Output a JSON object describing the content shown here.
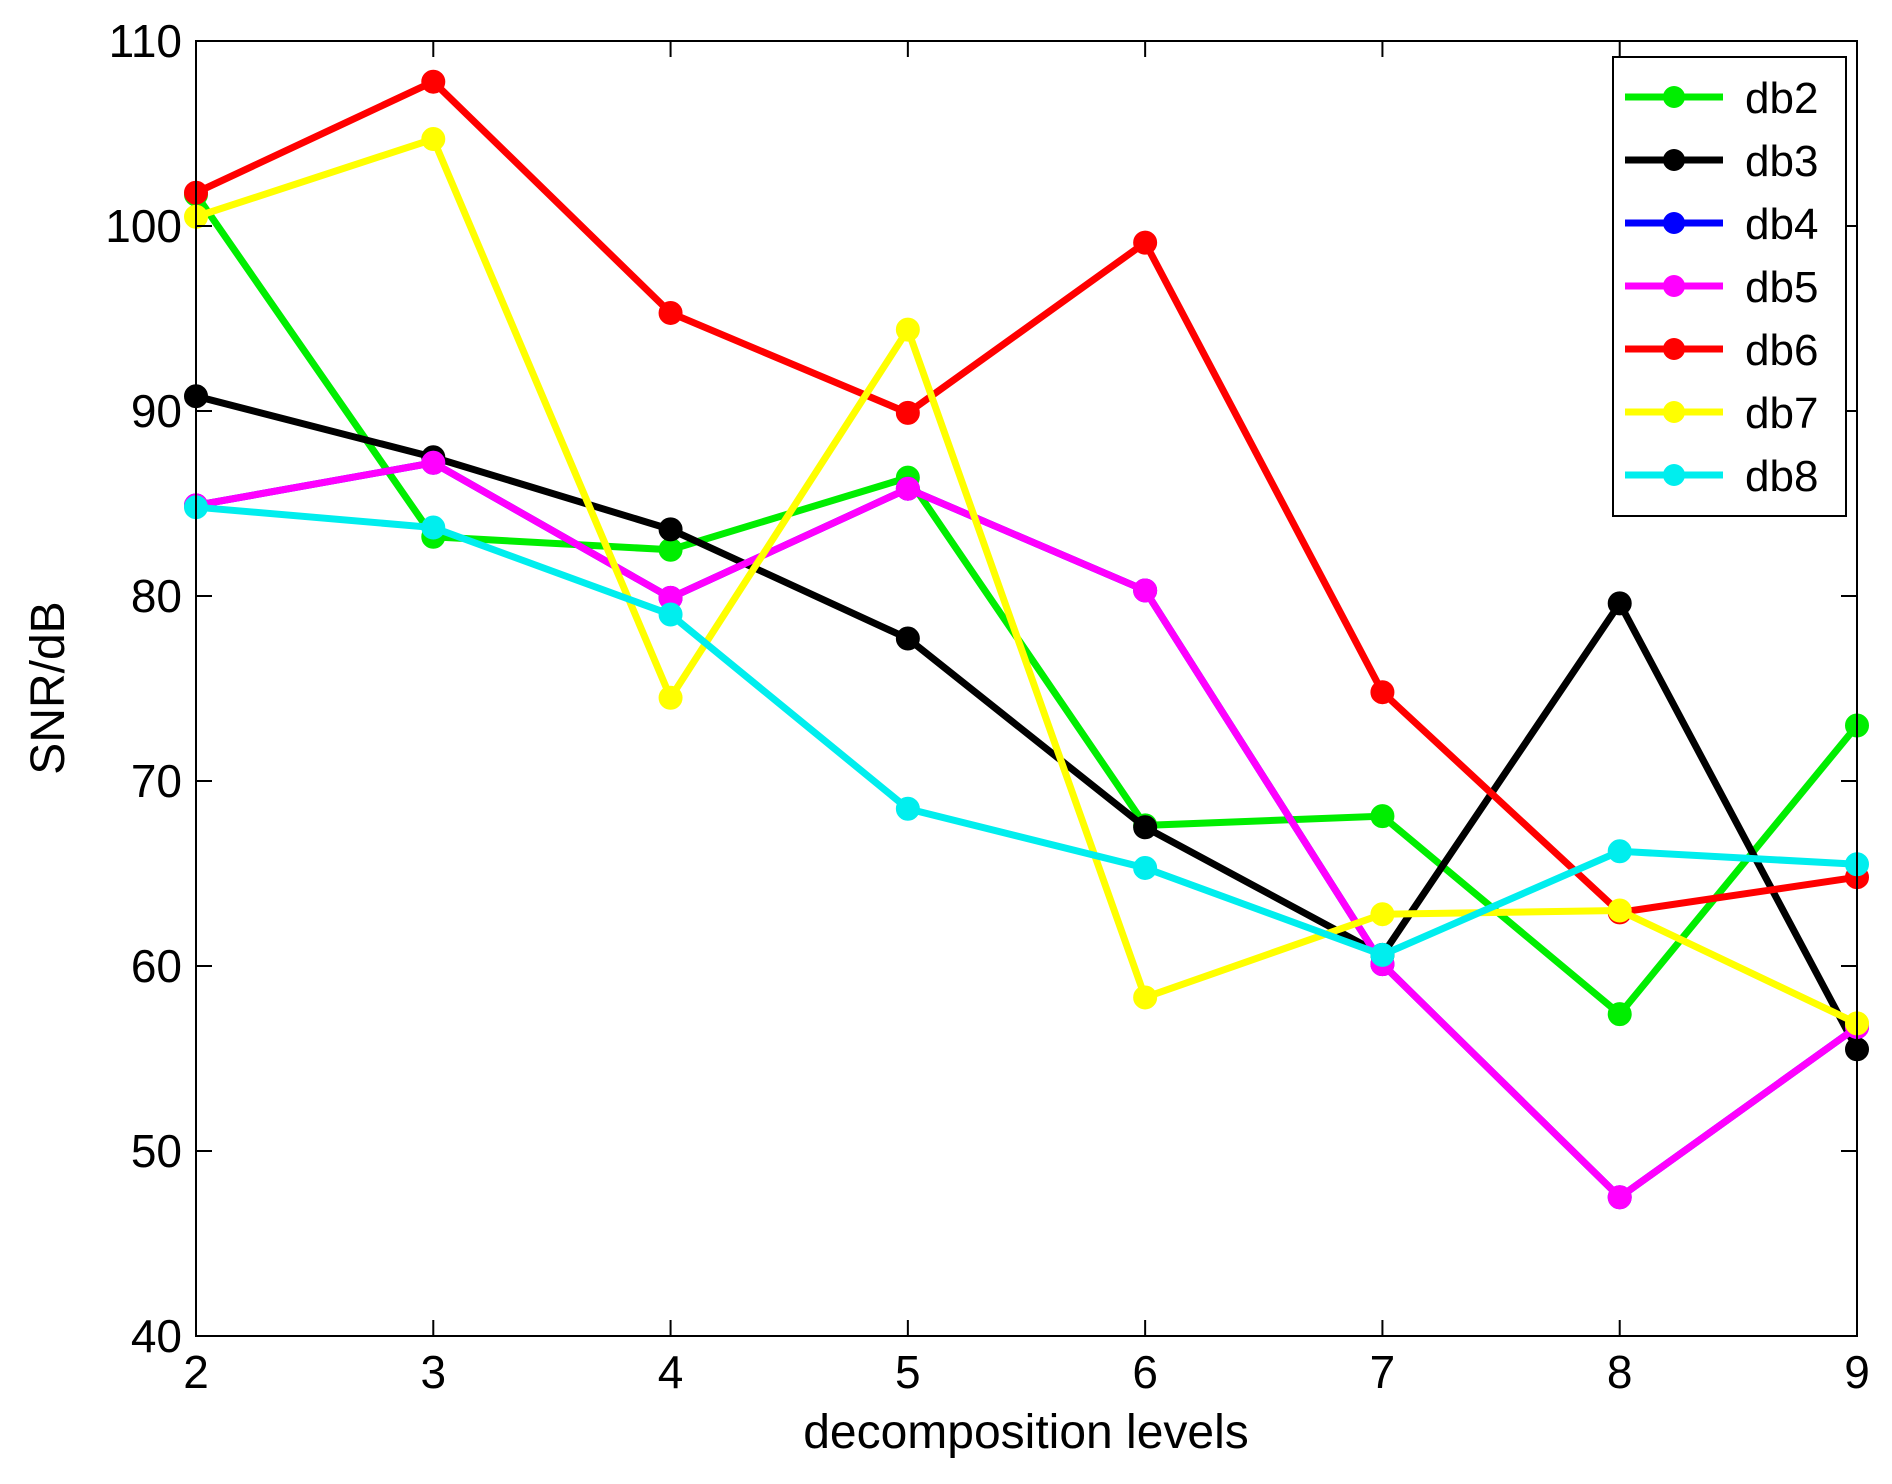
{
  "chart_data": {
    "type": "line",
    "title": "",
    "xlabel": "decomposition levels",
    "ylabel": "SNR/dB",
    "xlim": [
      2,
      9
    ],
    "ylim": [
      40,
      110
    ],
    "grid": false,
    "legend_position": "top-right",
    "x": [
      2,
      3,
      4,
      5,
      6,
      7,
      8,
      9
    ],
    "x_ticks": [
      "2",
      "3",
      "4",
      "5",
      "6",
      "7",
      "8",
      "9"
    ],
    "y_ticks": [
      "40",
      "50",
      "60",
      "70",
      "80",
      "90",
      "100",
      "110"
    ],
    "series": [
      {
        "name": "db2",
        "color": "#00ee00",
        "values": [
          101.7,
          83.2,
          82.5,
          86.4,
          67.6,
          68.1,
          57.4,
          73.0
        ]
      },
      {
        "name": "db3",
        "color": "#000000",
        "values": [
          90.8,
          87.5,
          83.6,
          77.7,
          67.5,
          60.6,
          79.6,
          55.5
        ]
      },
      {
        "name": "db4",
        "color": "#0000ff",
        "values": [
          84.9,
          87.2,
          79.9,
          85.8,
          80.3,
          60.1,
          47.5,
          56.7
        ]
      },
      {
        "name": "db5",
        "color": "#ff00ff",
        "values": [
          84.9,
          87.2,
          79.9,
          85.8,
          80.3,
          60.1,
          47.5,
          56.7
        ]
      },
      {
        "name": "db6",
        "color": "#ff0000",
        "values": [
          101.8,
          107.8,
          95.3,
          89.9,
          99.1,
          74.8,
          62.9,
          64.8
        ]
      },
      {
        "name": "db7",
        "color": "#ffff00",
        "values": [
          100.5,
          104.7,
          74.5,
          94.4,
          58.3,
          62.8,
          63.0,
          56.9
        ]
      },
      {
        "name": "db8",
        "color": "#00eeee",
        "values": [
          84.8,
          83.7,
          79.0,
          68.5,
          65.3,
          60.6,
          66.2,
          65.5
        ]
      }
    ]
  }
}
